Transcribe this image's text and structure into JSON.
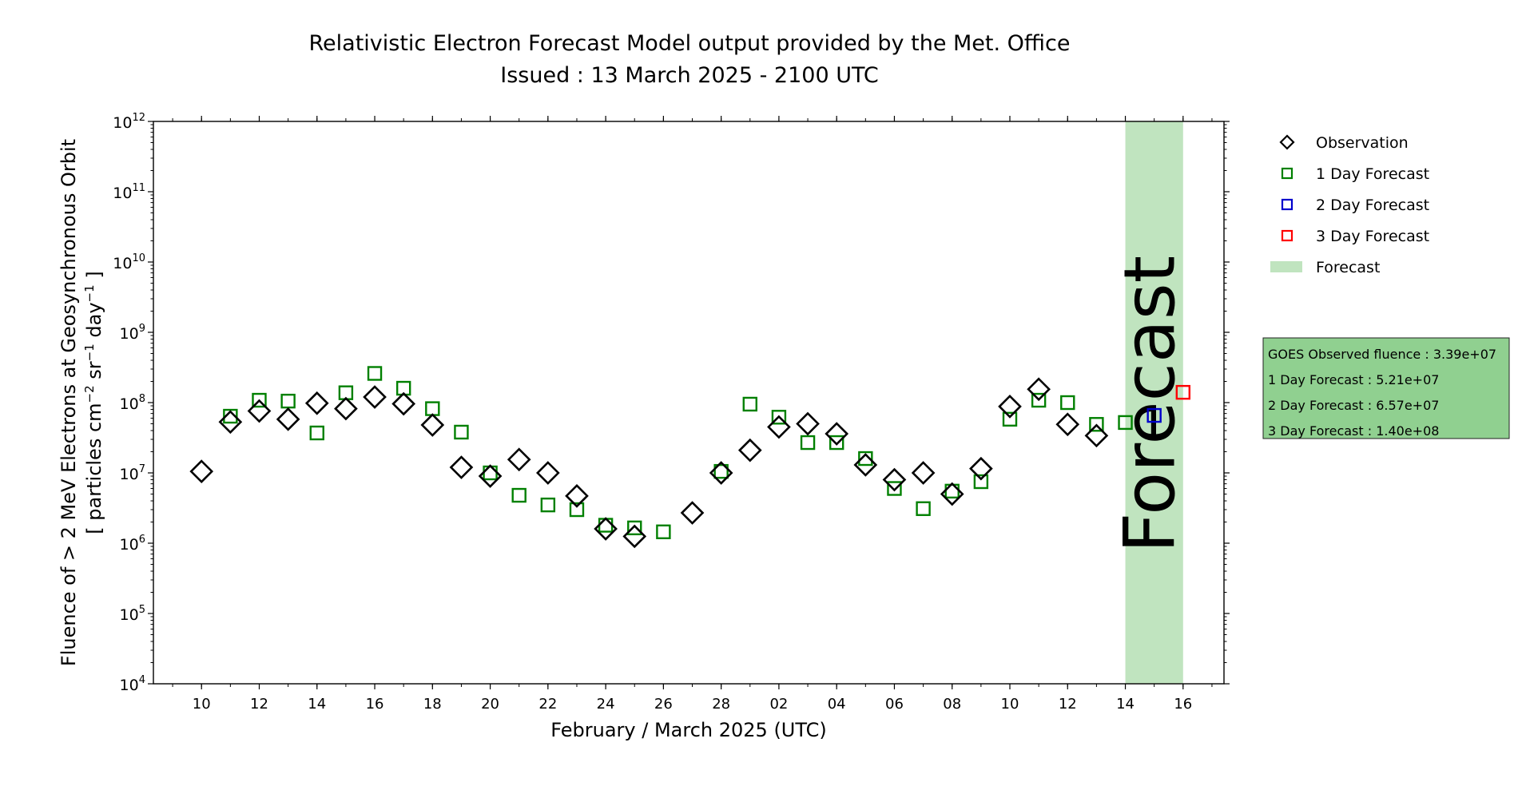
{
  "chart_data": {
    "type": "scatter",
    "title": "Relativistic Electron Forecast Model output provided by the Met. Office",
    "subtitle": "Issued : 13 March 2025 - 2100 UTC",
    "xlabel": "February / March 2025 (UTC)",
    "ylabel_line1": "Fluence of > 2 MeV Electrons at Geosynchronous Orbit",
    "ylabel_line2_parts": [
      "[ particles cm",
      "−2",
      " sr",
      "−1",
      " day",
      "−1",
      " ]"
    ],
    "y_scale": "log",
    "ylim": [
      10000,
      1000000000000
    ],
    "y_ticks": [
      {
        "base": "10",
        "exp": "4",
        "value": 10000
      },
      {
        "base": "10",
        "exp": "5",
        "value": 100000
      },
      {
        "base": "10",
        "exp": "6",
        "value": 1000000
      },
      {
        "base": "10",
        "exp": "7",
        "value": 10000000
      },
      {
        "base": "10",
        "exp": "8",
        "value": 100000000
      },
      {
        "base": "10",
        "exp": "9",
        "value": 1000000000
      },
      {
        "base": "10",
        "exp": "10",
        "value": 10000000000
      },
      {
        "base": "10",
        "exp": "11",
        "value": 100000000000
      },
      {
        "base": "10",
        "exp": "12",
        "value": 1000000000000
      }
    ],
    "xlim": [
      "2025-02-08T08:00",
      "2025-03-17T10:00"
    ],
    "x_ticks": [
      {
        "label": "10",
        "date": "2025-02-10"
      },
      {
        "label": "12",
        "date": "2025-02-12"
      },
      {
        "label": "14",
        "date": "2025-02-14"
      },
      {
        "label": "16",
        "date": "2025-02-16"
      },
      {
        "label": "18",
        "date": "2025-02-18"
      },
      {
        "label": "20",
        "date": "2025-02-20"
      },
      {
        "label": "22",
        "date": "2025-02-22"
      },
      {
        "label": "24",
        "date": "2025-02-24"
      },
      {
        "label": "26",
        "date": "2025-02-26"
      },
      {
        "label": "28",
        "date": "2025-02-28"
      },
      {
        "label": "02",
        "date": "2025-03-02"
      },
      {
        "label": "04",
        "date": "2025-03-04"
      },
      {
        "label": "06",
        "date": "2025-03-06"
      },
      {
        "label": "08",
        "date": "2025-03-08"
      },
      {
        "label": "10",
        "date": "2025-03-10"
      },
      {
        "label": "12",
        "date": "2025-03-12"
      },
      {
        "label": "14",
        "date": "2025-03-14"
      },
      {
        "label": "16",
        "date": "2025-03-16"
      }
    ],
    "forecast_band": {
      "start": "2025-03-14",
      "end": "2025-03-16",
      "label": "Forecast",
      "color": "#c0e4bf"
    },
    "legend_position": "outside right",
    "legend": [
      {
        "label": "Observation",
        "marker": "diamond",
        "color": "#000000"
      },
      {
        "label": "1 Day Forecast",
        "marker": "square",
        "color": "#008000"
      },
      {
        "label": "2 Day Forecast",
        "marker": "square",
        "color": "#0000cc"
      },
      {
        "label": "3 Day Forecast",
        "marker": "square",
        "color": "#ff0000"
      },
      {
        "label": "Forecast",
        "marker": "band",
        "color": "#c0e4bf"
      }
    ],
    "info_box": {
      "background": "#90d090",
      "lines": [
        "GOES Observed fluence : 3.39e+07",
        "1 Day Forecast : 5.21e+07",
        "2 Day Forecast : 6.57e+07",
        "3 Day Forecast : 1.40e+08"
      ]
    },
    "series": [
      {
        "name": "Observation",
        "marker": "diamond",
        "color": "#000000",
        "points": [
          [
            "2025-02-10",
            10500000
          ],
          [
            "2025-02-11",
            53000000
          ],
          [
            "2025-02-12",
            76000000
          ],
          [
            "2025-02-13",
            58000000
          ],
          [
            "2025-02-14",
            98000000
          ],
          [
            "2025-02-15",
            82000000
          ],
          [
            "2025-02-16",
            120000000
          ],
          [
            "2025-02-17",
            96000000
          ],
          [
            "2025-02-18",
            48000000
          ],
          [
            "2025-02-19",
            12000000
          ],
          [
            "2025-02-20",
            9000000
          ],
          [
            "2025-02-21",
            15500000
          ],
          [
            "2025-02-22",
            10000000
          ],
          [
            "2025-02-23",
            4700000
          ],
          [
            "2025-02-24",
            1600000
          ],
          [
            "2025-02-25",
            1250000
          ],
          [
            "2025-02-27",
            2700000
          ],
          [
            "2025-02-28",
            10000000
          ],
          [
            "2025-03-01",
            21000000
          ],
          [
            "2025-03-02",
            45000000
          ],
          [
            "2025-03-03",
            50000000
          ],
          [
            "2025-03-04",
            36000000
          ],
          [
            "2025-03-05",
            13000000
          ],
          [
            "2025-03-06",
            8000000
          ],
          [
            "2025-03-07",
            10000000
          ],
          [
            "2025-03-08",
            5000000
          ],
          [
            "2025-03-09",
            11500000
          ],
          [
            "2025-03-10",
            88000000
          ],
          [
            "2025-03-11",
            155000000
          ],
          [
            "2025-03-12",
            49000000
          ],
          [
            "2025-03-13",
            33900000
          ]
        ]
      },
      {
        "name": "1 Day Forecast",
        "marker": "square",
        "color": "#008000",
        "points": [
          [
            "2025-02-11",
            64000000
          ],
          [
            "2025-02-12",
            108000000
          ],
          [
            "2025-02-13",
            105000000
          ],
          [
            "2025-02-14",
            37000000
          ],
          [
            "2025-02-15",
            138000000
          ],
          [
            "2025-02-16",
            260000000
          ],
          [
            "2025-02-17",
            160000000
          ],
          [
            "2025-02-18",
            82000000
          ],
          [
            "2025-02-19",
            38000000
          ],
          [
            "2025-02-20",
            10000000
          ],
          [
            "2025-02-21",
            4800000
          ],
          [
            "2025-02-22",
            3500000
          ],
          [
            "2025-02-23",
            3000000
          ],
          [
            "2025-02-24",
            1800000
          ],
          [
            "2025-02-25",
            1650000
          ],
          [
            "2025-02-26",
            1450000
          ],
          [
            "2025-02-28",
            10500000
          ],
          [
            "2025-03-01",
            95000000
          ],
          [
            "2025-03-02",
            62000000
          ],
          [
            "2025-03-03",
            27000000
          ],
          [
            "2025-03-04",
            27000000
          ],
          [
            "2025-03-05",
            16000000
          ],
          [
            "2025-03-06",
            6000000
          ],
          [
            "2025-03-07",
            3100000
          ],
          [
            "2025-03-08",
            5500000
          ],
          [
            "2025-03-09",
            7500000
          ],
          [
            "2025-03-10",
            58000000
          ],
          [
            "2025-03-11",
            108000000
          ],
          [
            "2025-03-12",
            100000000
          ],
          [
            "2025-03-13",
            49000000
          ],
          [
            "2025-03-14",
            52100000
          ]
        ]
      },
      {
        "name": "2 Day Forecast",
        "marker": "square",
        "color": "#0000cc",
        "points": [
          [
            "2025-03-15",
            65700000
          ]
        ]
      },
      {
        "name": "3 Day Forecast",
        "marker": "square",
        "color": "#ff0000",
        "points": [
          [
            "2025-03-16",
            140000000
          ]
        ]
      }
    ]
  }
}
